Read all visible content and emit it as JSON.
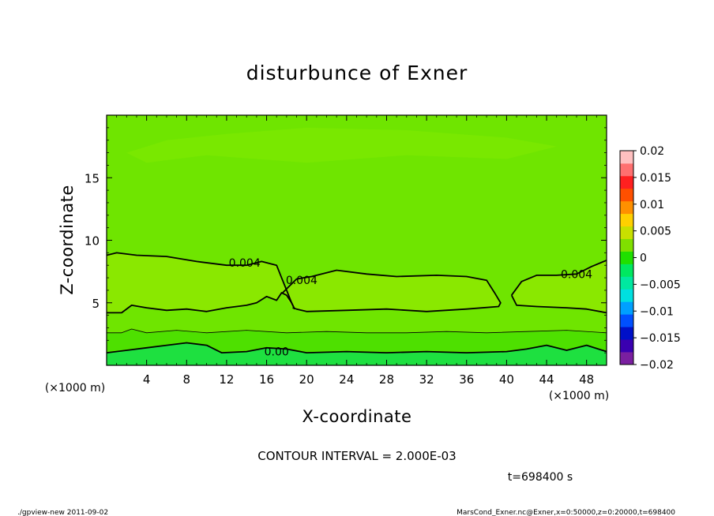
{
  "chart_data": {
    "type": "contour",
    "title": "disturbunce of Exner",
    "xlabel": "X-coordinate",
    "ylabel": "Z-coordinate",
    "x_unit_note_left": "(×1000 m)",
    "x_unit_note_right": "(×1000 m)",
    "xlim": [
      0,
      50
    ],
    "ylim": [
      0,
      20
    ],
    "x_ticks": [
      4,
      8,
      12,
      16,
      20,
      24,
      28,
      32,
      36,
      40,
      44,
      48
    ],
    "y_ticks": [
      5,
      10,
      15
    ],
    "contour_interval_text": "CONTOUR INTERVAL = 2.000E-03",
    "time_text": "t=698400 s",
    "contour_labels": [
      {
        "text": "0.004",
        "x": 13.8,
        "z": 8.2
      },
      {
        "text": "0.004",
        "x": 19.5,
        "z": 6.8
      },
      {
        "text": "0.004",
        "x": 47.0,
        "z": 7.3
      },
      {
        "text": "0.00",
        "x": 17.0,
        "z": 1.1
      }
    ],
    "contours": [
      {
        "level": 0.004,
        "style": "bold",
        "points": [
          [
            0,
            8.8
          ],
          [
            1,
            9
          ],
          [
            3,
            8.8
          ],
          [
            6,
            8.7
          ],
          [
            9,
            8.3
          ],
          [
            12,
            8.0
          ],
          [
            14,
            8.0
          ],
          [
            15.5,
            8.3
          ],
          [
            17.0,
            8.0
          ],
          [
            17.5,
            7.0
          ],
          [
            18.0,
            6.0
          ],
          [
            18.5,
            5.0
          ],
          [
            18.8,
            4.5
          ]
        ]
      },
      {
        "level": 0.004,
        "style": "bold",
        "points": [
          [
            0,
            4.2
          ],
          [
            1.5,
            4.2
          ],
          [
            2.5,
            4.8
          ],
          [
            4,
            4.6
          ],
          [
            6,
            4.4
          ],
          [
            8,
            4.5
          ],
          [
            10,
            4.3
          ],
          [
            12,
            4.6
          ],
          [
            14,
            4.8
          ],
          [
            15,
            5.0
          ],
          [
            16,
            5.5
          ],
          [
            17,
            5.2
          ],
          [
            17.5,
            5.8
          ],
          [
            18,
            5.6
          ],
          [
            18.5,
            5.0
          ],
          [
            18.8,
            4.5
          ]
        ]
      },
      {
        "level": 0.004,
        "style": "bold",
        "points": [
          [
            17.6,
            5.8
          ],
          [
            19,
            6.9
          ],
          [
            20.5,
            7.1
          ],
          [
            23,
            7.6
          ],
          [
            26,
            7.3
          ],
          [
            29,
            7.1
          ],
          [
            33,
            7.2
          ],
          [
            36,
            7.1
          ],
          [
            38,
            6.8
          ],
          [
            38.8,
            5.8
          ],
          [
            39.4,
            5.0
          ],
          [
            39.2,
            4.7
          ],
          [
            36,
            4.5
          ],
          [
            32,
            4.3
          ],
          [
            28,
            4.5
          ],
          [
            24,
            4.4
          ],
          [
            20,
            4.3
          ],
          [
            19,
            4.5
          ],
          [
            18.6,
            4.6
          ]
        ]
      },
      {
        "level": 0.004,
        "style": "bold",
        "points": [
          [
            40.5,
            5.6
          ],
          [
            41.5,
            6.7
          ],
          [
            43,
            7.2
          ],
          [
            45,
            7.2
          ],
          [
            47,
            7.3
          ],
          [
            48.5,
            7.9
          ],
          [
            50,
            8.4
          ]
        ]
      },
      {
        "level": 0.004,
        "style": "bold",
        "points": [
          [
            40.5,
            5.6
          ],
          [
            41,
            4.8
          ],
          [
            43,
            4.7
          ],
          [
            46,
            4.6
          ],
          [
            48,
            4.5
          ],
          [
            50,
            4.2
          ]
        ]
      },
      {
        "level": 0.002,
        "style": "thin",
        "points": [
          [
            0,
            2.6
          ],
          [
            1.5,
            2.6
          ],
          [
            2.5,
            2.9
          ],
          [
            4,
            2.6
          ],
          [
            7,
            2.8
          ],
          [
            10,
            2.6
          ],
          [
            14,
            2.8
          ],
          [
            18,
            2.6
          ],
          [
            22,
            2.7
          ],
          [
            26,
            2.6
          ],
          [
            30,
            2.6
          ],
          [
            34,
            2.7
          ],
          [
            38,
            2.6
          ],
          [
            42,
            2.7
          ],
          [
            46,
            2.8
          ],
          [
            50,
            2.6
          ]
        ]
      },
      {
        "level": 0.0,
        "style": "bold",
        "points": [
          [
            0,
            1.0
          ],
          [
            2,
            1.2
          ],
          [
            4,
            1.4
          ],
          [
            6,
            1.6
          ],
          [
            8,
            1.8
          ],
          [
            10,
            1.6
          ],
          [
            11.5,
            1.0
          ],
          [
            14,
            1.1
          ],
          [
            16,
            1.4
          ],
          [
            18,
            1.3
          ],
          [
            20,
            1.0
          ],
          [
            24,
            1.1
          ],
          [
            28,
            1.0
          ],
          [
            32,
            1.1
          ],
          [
            36,
            1.0
          ],
          [
            40,
            1.1
          ],
          [
            42,
            1.3
          ],
          [
            44,
            1.6
          ],
          [
            46,
            1.2
          ],
          [
            48,
            1.6
          ],
          [
            50,
            1.1
          ]
        ]
      }
    ],
    "colorbar": {
      "min": -0.02,
      "max": 0.02,
      "tick_labels": [
        "0.02",
        "0.015",
        "0.01",
        "0.005",
        "0",
        "−0.005",
        "−0.01",
        "−0.015",
        "−0.02"
      ],
      "tick_values": [
        0.02,
        0.015,
        0.01,
        0.005,
        0,
        -0.005,
        -0.01,
        -0.015,
        -0.02
      ],
      "colors_bottom_to_top": [
        "#7a1fa0",
        "#3a00b0",
        "#0010c8",
        "#0050ff",
        "#00a0ff",
        "#00e0e0",
        "#00e8a0",
        "#00e860",
        "#20e000",
        "#80e000",
        "#c8e000",
        "#ffd000",
        "#ff9000",
        "#ff5000",
        "#ff2020",
        "#ff7070",
        "#ffc0c0"
      ]
    },
    "field_colors": {
      "top_band": "#79e800",
      "upper": "#6fe500",
      "lens": "#8ae800",
      "low_band": "#4ee000",
      "bottom": "#1ee040"
    }
  },
  "footer": {
    "left": "./gpview-new   2011-09-02",
    "right": "MarsCond_Exner.nc@Exner,x=0:50000,z=0:20000,t=698400"
  }
}
